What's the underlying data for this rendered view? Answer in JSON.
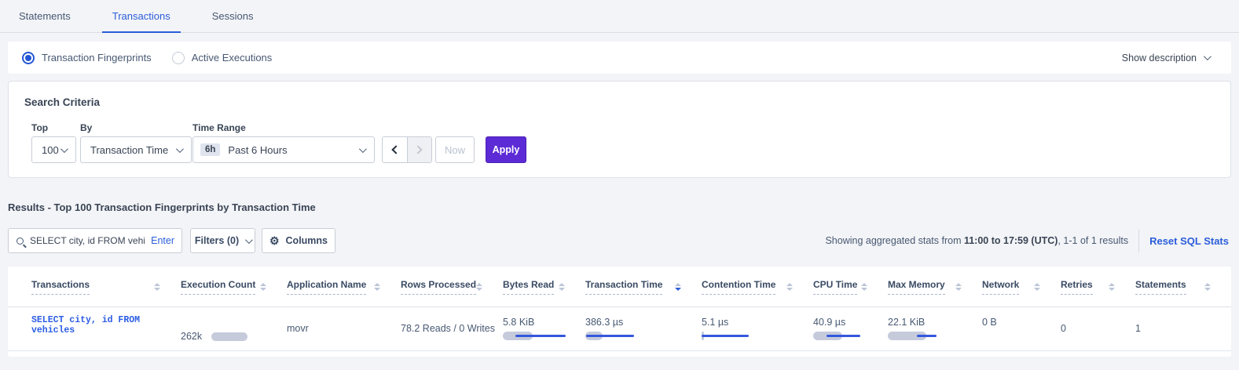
{
  "tabs": {
    "items": [
      {
        "label": "Statements",
        "active": false
      },
      {
        "label": "Transactions",
        "active": true
      },
      {
        "label": "Sessions",
        "active": false
      }
    ]
  },
  "view_bar": {
    "radios": [
      {
        "label": "Transaction Fingerprints",
        "selected": true
      },
      {
        "label": "Active Executions",
        "selected": false
      }
    ],
    "show_description_label": "Show description"
  },
  "search_criteria": {
    "title": "Search Criteria",
    "top_label": "Top",
    "top_value": "100",
    "by_label": "By",
    "by_value": "Transaction Time",
    "time_range_label": "Time Range",
    "time_range_badge": "6h",
    "time_range_value": "Past 6 Hours",
    "prev_disabled": false,
    "next_disabled": true,
    "now_label": "Now",
    "apply_label": "Apply"
  },
  "results": {
    "heading": "Results - Top 100 Transaction Fingerprints by Transaction Time",
    "search_value": "SELECT city, id FROM vehicles W",
    "search_enter_label": "Enter",
    "filters_label": "Filters (0)",
    "columns_label": "Columns",
    "stats_prefix": "Showing aggregated stats from ",
    "stats_bold": "11:00 to 17:59 (UTC)",
    "stats_suffix": ", 1-1 of 1 results",
    "reset_label": "Reset SQL Stats"
  },
  "table": {
    "columns": [
      {
        "label": "Transactions",
        "sort": "none"
      },
      {
        "label": "Execution Count",
        "sort": "none"
      },
      {
        "label": "Application Name",
        "sort": "none"
      },
      {
        "label": "Rows Processed",
        "sort": "none"
      },
      {
        "label": "Bytes Read",
        "sort": "none"
      },
      {
        "label": "Transaction Time",
        "sort": "desc"
      },
      {
        "label": "Contention Time",
        "sort": "none"
      },
      {
        "label": "CPU Time",
        "sort": "none"
      },
      {
        "label": "Max Memory",
        "sort": "none"
      },
      {
        "label": "Network",
        "sort": "none"
      },
      {
        "label": "Retries",
        "sort": "none"
      },
      {
        "label": "Statements",
        "sort": "none"
      }
    ],
    "row": {
      "transaction": "SELECT city, id FROM vehicles",
      "execution_count": "262k",
      "application_name": "movr",
      "rows_processed": "78.2 Reads / 0 Writes",
      "bytes_read": "5.8 KiB",
      "transaction_time": "386.3 µs",
      "contention_time": "5.1 µs",
      "cpu_time": "40.9 µs",
      "max_memory": "22.1 KiB",
      "network": "0 B",
      "retries": "0",
      "statements": "1",
      "bars": {
        "execution_count": {
          "bar": 46
        },
        "bytes_read": {
          "bar": 38,
          "line": [
            16,
            80
          ]
        },
        "transaction_time": {
          "bar": 22,
          "line": [
            1,
            62
          ]
        },
        "contention_time": {
          "bar": 3,
          "line": [
            0,
            60
          ]
        },
        "cpu_time": {
          "bar": 37,
          "line": [
            17,
            60
          ]
        },
        "max_memory": {
          "bar": 49,
          "line": [
            37,
            62
          ]
        }
      }
    }
  },
  "colors": {
    "accent_blue": "#2b5dd9",
    "apply_purple": "#5c2bd6",
    "bar_grey": "#c5cbdb",
    "bar_blue": "#3457dd"
  }
}
